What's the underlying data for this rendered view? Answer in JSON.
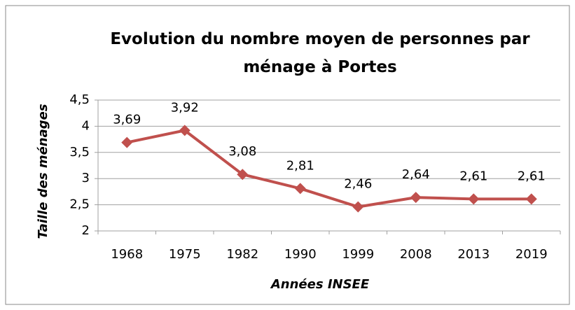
{
  "chart_data": {
    "type": "line",
    "title": "Evolution du nombre moyen de personnes par ménage à Portes",
    "x_label": "Années INSEE",
    "y_label": "Taille des ménages",
    "categories": [
      "1968",
      "1975",
      "1982",
      "1990",
      "1999",
      "2008",
      "2013",
      "2019"
    ],
    "values": [
      3.69,
      3.92,
      3.08,
      2.81,
      2.46,
      2.64,
      2.61,
      2.61
    ],
    "value_labels": [
      "3,69",
      "3,92",
      "3,08",
      "2,81",
      "2,46",
      "2,64",
      "2,61",
      "2,61"
    ],
    "color": "#c0504d",
    "ylim": [
      2,
      4.5
    ],
    "yticks": [
      2,
      {
        "value": 2.5,
        "label": "2,5"
      },
      3,
      {
        "value": 3.5,
        "label": "3,5"
      },
      4,
      {
        "value": 4.5,
        "label": "4,5"
      }
    ],
    "grid": true
  }
}
